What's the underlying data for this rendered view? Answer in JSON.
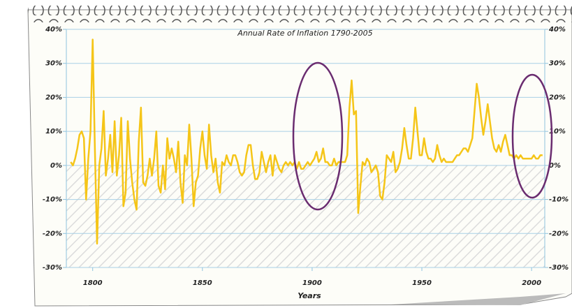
{
  "chart_data": {
    "type": "line",
    "title": "Annual Rate of Inflation 1790-2005",
    "x_label": "Years",
    "color": "#f5c518",
    "grid": true,
    "x": [
      1790,
      1791,
      1792,
      1793,
      1794,
      1795,
      1796,
      1797,
      1798,
      1799,
      1800,
      1801,
      1802,
      1803,
      1804,
      1805,
      1806,
      1807,
      1808,
      1809,
      1810,
      1811,
      1812,
      1813,
      1814,
      1815,
      1816,
      1817,
      1818,
      1819,
      1820,
      1821,
      1822,
      1823,
      1824,
      1825,
      1826,
      1827,
      1828,
      1829,
      1830,
      1831,
      1832,
      1833,
      1834,
      1835,
      1836,
      1837,
      1838,
      1839,
      1840,
      1841,
      1842,
      1843,
      1844,
      1845,
      1846,
      1847,
      1848,
      1849,
      1850,
      1851,
      1852,
      1853,
      1854,
      1855,
      1856,
      1857,
      1858,
      1859,
      1860,
      1861,
      1862,
      1863,
      1864,
      1865,
      1866,
      1867,
      1868,
      1869,
      1870,
      1871,
      1872,
      1873,
      1874,
      1875,
      1876,
      1877,
      1878,
      1879,
      1880,
      1881,
      1882,
      1883,
      1884,
      1885,
      1886,
      1887,
      1888,
      1889,
      1890,
      1891,
      1892,
      1893,
      1894,
      1895,
      1896,
      1897,
      1898,
      1899,
      1900,
      1901,
      1902,
      1903,
      1904,
      1905,
      1906,
      1907,
      1908,
      1909,
      1910,
      1911,
      1912,
      1913,
      1914,
      1915,
      1916,
      1917,
      1918,
      1919,
      1920,
      1921,
      1922,
      1923,
      1924,
      1925,
      1926,
      1927,
      1928,
      1929,
      1930,
      1931,
      1932,
      1933,
      1934,
      1935,
      1936,
      1937,
      1938,
      1939,
      1940,
      1941,
      1942,
      1943,
      1944,
      1945,
      1946,
      1947,
      1948,
      1949,
      1950,
      1951,
      1952,
      1953,
      1954,
      1955,
      1956,
      1957,
      1958,
      1959,
      1960,
      1961,
      1962,
      1963,
      1964,
      1965,
      1966,
      1967,
      1968,
      1969,
      1970,
      1971,
      1972,
      1973,
      1974,
      1975,
      1976,
      1977,
      1978,
      1979,
      1980,
      1981,
      1982,
      1983,
      1984,
      1985,
      1986,
      1987,
      1988,
      1989,
      1990,
      1991,
      1992,
      1993,
      1994,
      1995,
      1996,
      1997,
      1998,
      1999,
      2000,
      2001,
      2002,
      2003,
      2004,
      2005
    ],
    "values": [
      1,
      0,
      2,
      5,
      9,
      10,
      8,
      -10,
      2,
      10,
      37,
      5,
      -23,
      0,
      5,
      16,
      -3,
      2,
      9,
      -2,
      13,
      -3,
      3,
      14,
      -12,
      -8,
      13,
      2,
      -5,
      -10,
      -13,
      7,
      17,
      -5,
      -6,
      -3,
      2,
      -3,
      2,
      10,
      -6,
      -8,
      0,
      -7,
      8,
      2,
      5,
      2,
      -2,
      7,
      -5,
      -11,
      3,
      0,
      12,
      2,
      -12,
      -5,
      -3,
      5,
      10,
      3,
      -1,
      12,
      3,
      -2,
      2,
      -5,
      -8,
      1,
      0,
      3,
      1,
      0,
      3,
      3,
      1,
      -2,
      -3,
      -2,
      3,
      6,
      6,
      0,
      -4,
      -4,
      -2,
      4,
      1,
      -2,
      1,
      3,
      -3,
      3,
      1,
      -1,
      -2,
      0,
      1,
      0,
      1,
      0,
      1,
      -1,
      1,
      -1,
      -1,
      0,
      1,
      0,
      1,
      2,
      4,
      1,
      2,
      5,
      1,
      1,
      0,
      0,
      2,
      0,
      1,
      1,
      1,
      1,
      3,
      17,
      25,
      15,
      16,
      -14,
      -6,
      1,
      0,
      2,
      1,
      -2,
      -1,
      0,
      -2,
      -9,
      -10,
      -5,
      3,
      2,
      1,
      4,
      -2,
      -1,
      1,
      5,
      11,
      6,
      2,
      2,
      8,
      17,
      10,
      3,
      3,
      8,
      4,
      2,
      2,
      1,
      2,
      6,
      3,
      1,
      2,
      1,
      1,
      1,
      1,
      2,
      3,
      3,
      4,
      5,
      5,
      4,
      6,
      8,
      16,
      24,
      20,
      14,
      9,
      13,
      18,
      13,
      8,
      5,
      4,
      6,
      4,
      7,
      9,
      6,
      3,
      3,
      2,
      3,
      2,
      3,
      2,
      2,
      2,
      2,
      2,
      3,
      2,
      2,
      3,
      3
    ],
    "xlim": [
      1788,
      2006
    ],
    "xticks": [
      1800,
      1850,
      1900,
      1950,
      2000
    ],
    "ylim": [
      -30,
      40
    ],
    "yticks": [
      {
        "value": -30,
        "label": "-30%"
      },
      {
        "value": -20,
        "label": "-20%"
      },
      {
        "value": -10,
        "label": "-10%"
      },
      {
        "value": 0,
        "label": "0%"
      },
      {
        "value": 10,
        "label": "10%"
      },
      {
        "value": 20,
        "label": "20%"
      },
      {
        "value": 30,
        "label": "30%"
      },
      {
        "value": 40,
        "label": "40%"
      }
    ]
  }
}
